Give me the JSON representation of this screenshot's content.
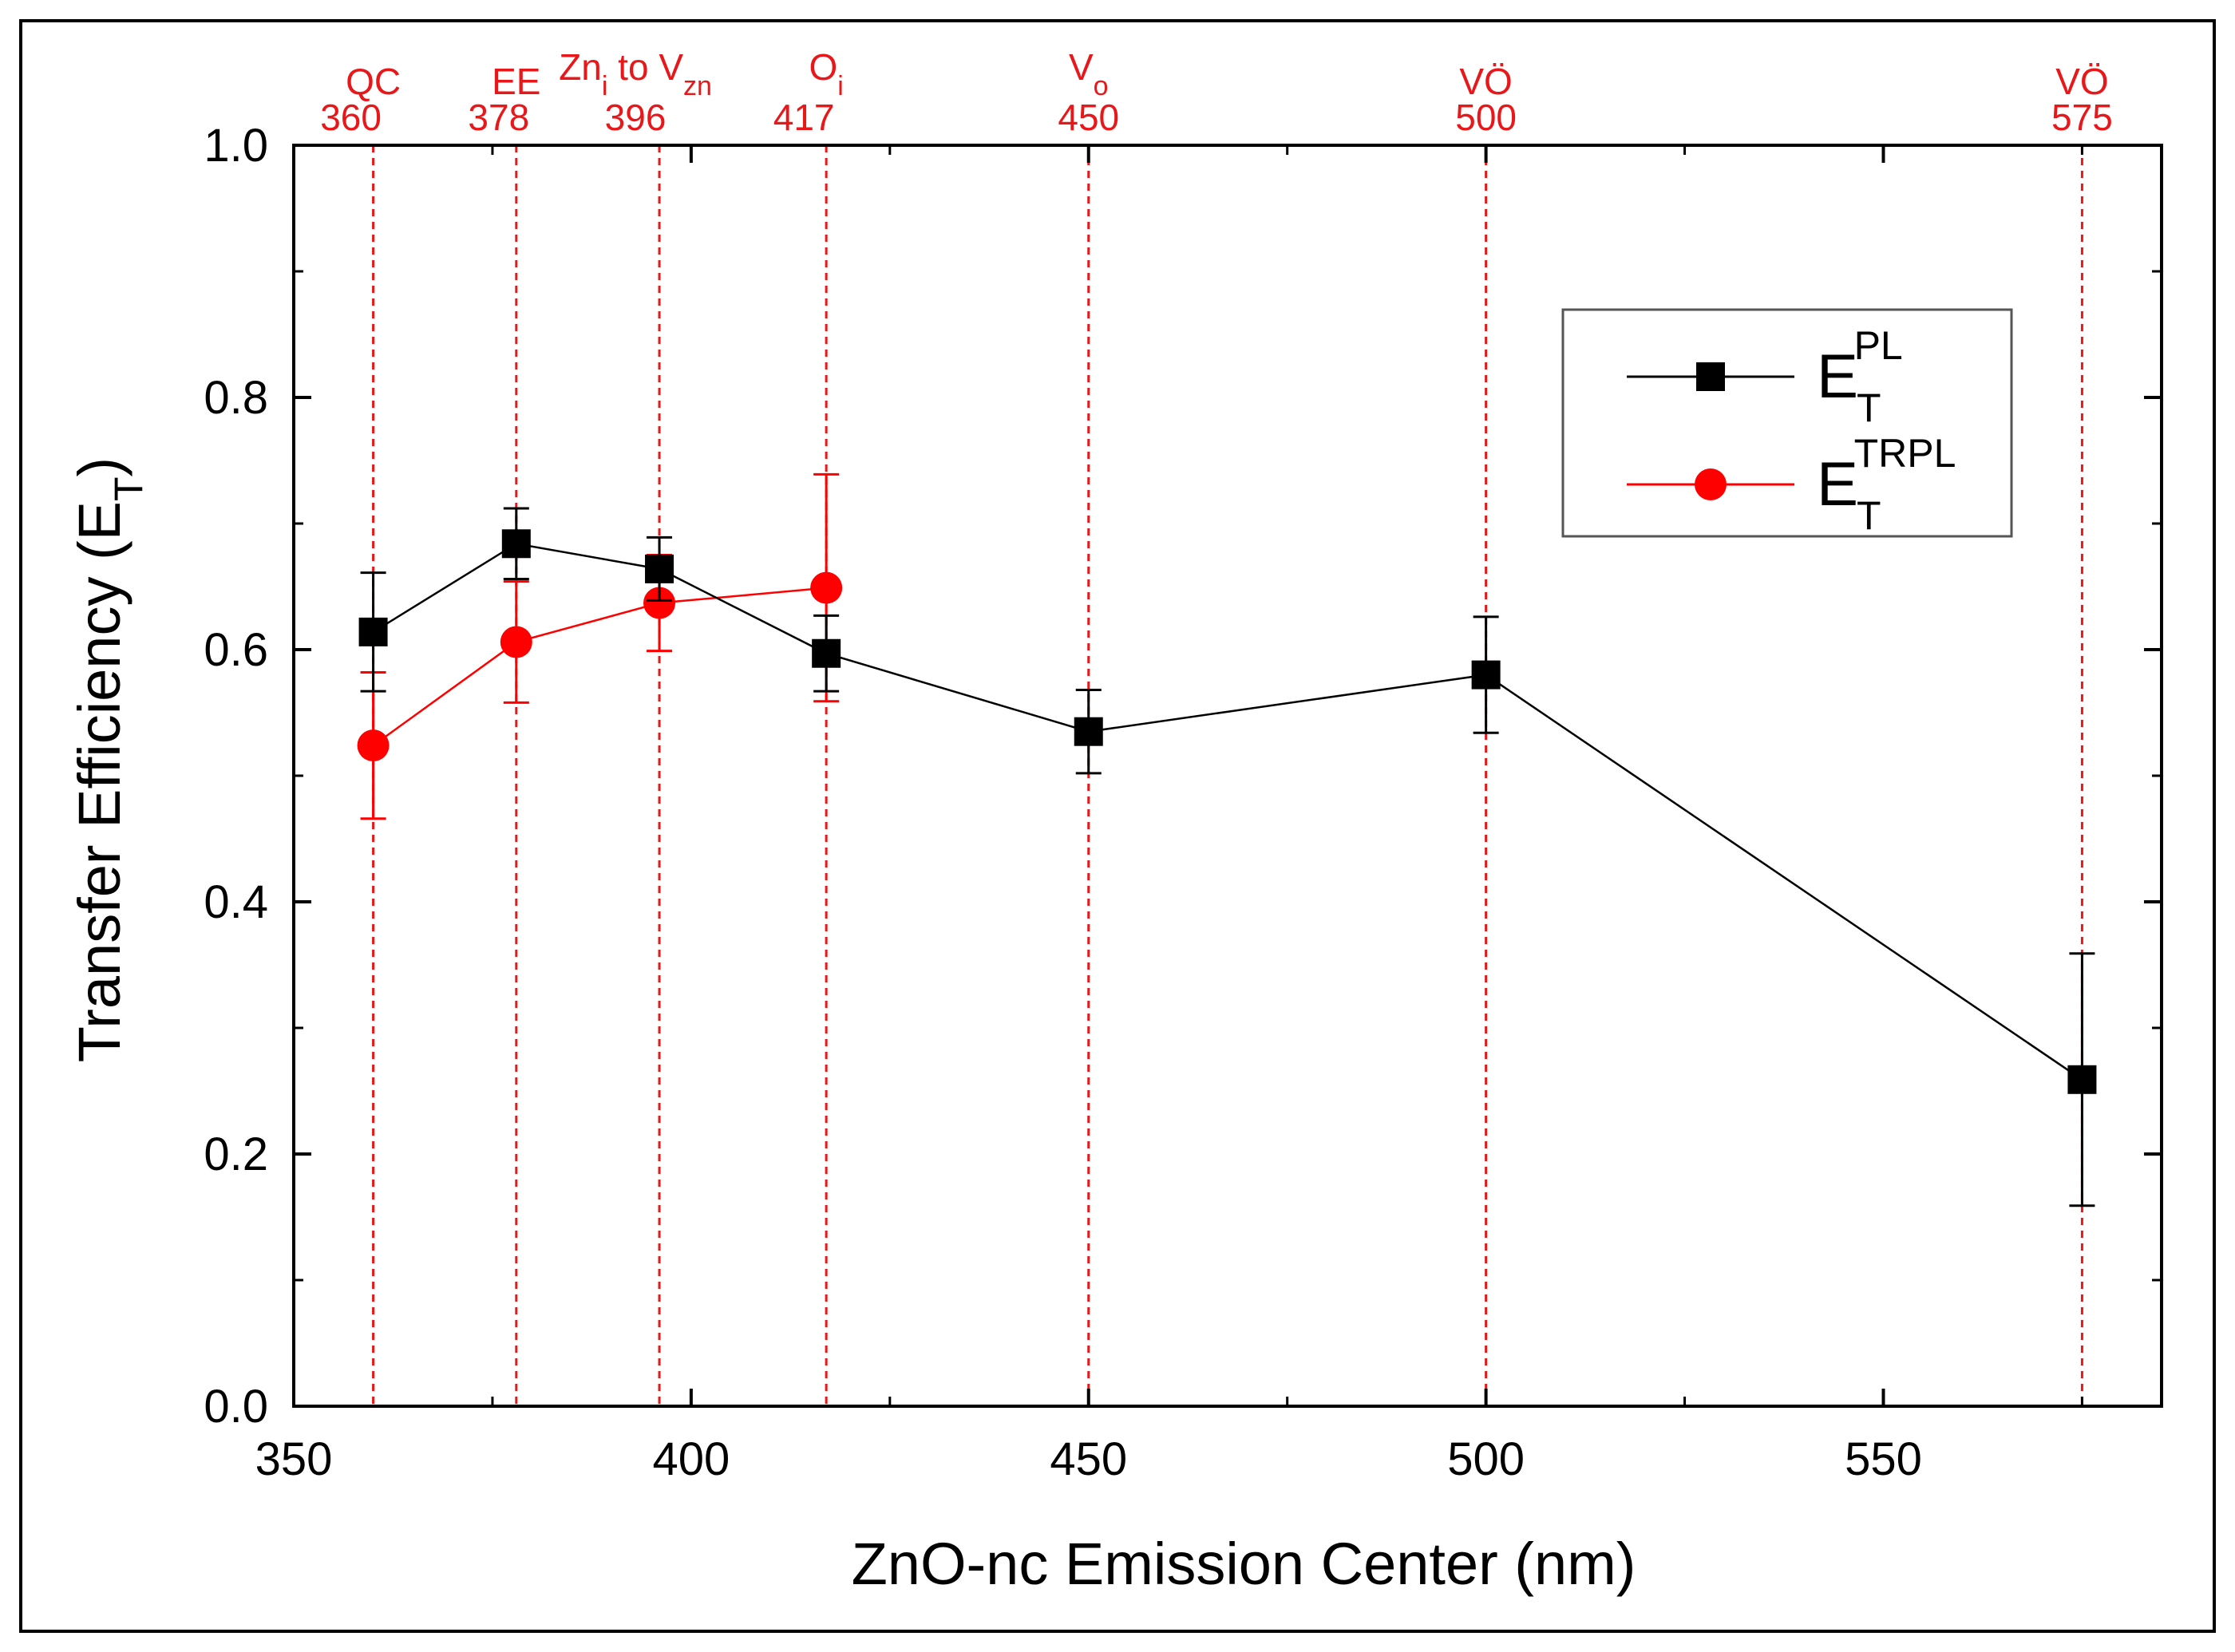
{
  "colors": {
    "pl": "#000000",
    "trpl": "#ff0000",
    "ref_lines": "#e8181a",
    "background": "#ffffff"
  },
  "chart_data": {
    "type": "scatter",
    "xlabel": "ZnO-nc Emission Center (nm)",
    "ylabel_main": "Transfer Efficiency (E",
    "ylabel_sub": "T",
    "ylabel_close": ")",
    "xlim": [
      350,
      585
    ],
    "ylim": [
      0.0,
      1.0
    ],
    "x_ticks": [
      350,
      400,
      450,
      500,
      550
    ],
    "x_tick_labels": [
      "350",
      "400",
      "450",
      "500",
      "550"
    ],
    "x_minor_ticks": [
      375,
      425,
      475,
      525,
      575
    ],
    "y_ticks": [
      0.0,
      0.2,
      0.4,
      0.6,
      0.8,
      1.0
    ],
    "y_tick_labels": [
      "0.0",
      "0.2",
      "0.4",
      "0.6",
      "0.8",
      "1.0"
    ],
    "y_minor_ticks": [
      0.1,
      0.3,
      0.5,
      0.7,
      0.9
    ],
    "series": [
      {
        "name": "E_T^PL",
        "legend_main": "E",
        "legend_sub": "T",
        "legend_sup": "PL",
        "marker": "square",
        "x": [
          360,
          378,
          396,
          417,
          450,
          500,
          575
        ],
        "y": [
          0.614,
          0.684,
          0.664,
          0.597,
          0.535,
          0.58,
          0.259
        ],
        "err": [
          0.047,
          0.028,
          0.025,
          0.03,
          0.033,
          0.046,
          0.1
        ]
      },
      {
        "name": "E_T^TRPL",
        "legend_main": "E",
        "legend_sub": "T",
        "legend_sup": "TRPL",
        "marker": "circle",
        "x": [
          360,
          378,
          396,
          417
        ],
        "y": [
          0.524,
          0.606,
          0.637,
          0.649
        ],
        "err": [
          0.058,
          0.048,
          0.038,
          0.09
        ]
      }
    ],
    "reference_lines": [
      {
        "x": 360,
        "label": "QC",
        "value": "360",
        "label_sub": ""
      },
      {
        "x": 378,
        "label": "EE",
        "value": "378",
        "label_sub": ""
      },
      {
        "x": 396,
        "label": "Zn",
        "label_sub": "i",
        "label_mid": " to V",
        "label_sub2": "zn",
        "value": "396"
      },
      {
        "x": 417,
        "label": "O",
        "label_sub": "i",
        "value": "417"
      },
      {
        "x": 450,
        "label": "V",
        "label_sub": "o",
        "value": "450"
      },
      {
        "x": 500,
        "label": "VÖ",
        "value": "500",
        "label_sub": ""
      },
      {
        "x": 575,
        "label": "VÖ",
        "value": "575",
        "label_sub": ""
      }
    ],
    "legend_position": "upper-right",
    "grid": false
  }
}
